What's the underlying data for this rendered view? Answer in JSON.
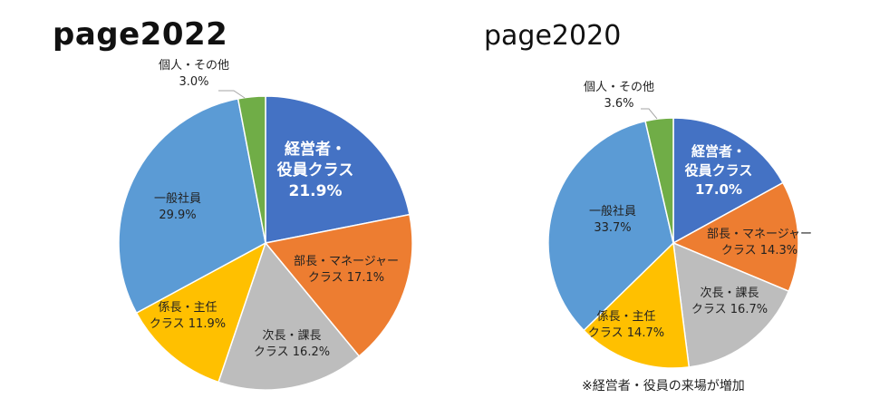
{
  "colors": {
    "executive": "#4472C4",
    "manager": "#ED7D31",
    "section_chief": "#BDBDBD",
    "supervisor": "#FFC000",
    "staff": "#5B9BD5",
    "other": "#70AD47"
  },
  "note": "※経営者・役員の来場が増加",
  "chart_data": [
    {
      "type": "pie",
      "title": "page2022",
      "slices": [
        {
          "key": "executive",
          "label_lines": [
            "経営者・",
            "役員クラス"
          ],
          "value_text": "21.9%",
          "value": 21.9
        },
        {
          "key": "manager",
          "label_lines": [
            "部長・マネージャー"
          ],
          "value_text": "クラス 17.1%",
          "value": 17.1
        },
        {
          "key": "section_chief",
          "label_lines": [
            "次長・課長"
          ],
          "value_text": "クラス 16.2%",
          "value": 16.2
        },
        {
          "key": "supervisor",
          "label_lines": [
            "係長・主任"
          ],
          "value_text": "クラス 11.9%",
          "value": 11.9
        },
        {
          "key": "staff",
          "label_lines": [
            "一般社員"
          ],
          "value_text": "29.9%",
          "value": 29.9
        },
        {
          "key": "other",
          "label_lines": [
            "個人・その他"
          ],
          "value_text": "3.0%",
          "value": 3.0
        }
      ]
    },
    {
      "type": "pie",
      "title": "page2020",
      "slices": [
        {
          "key": "executive",
          "label_lines": [
            "経営者・",
            "役員クラス"
          ],
          "value_text": "17.0%",
          "value": 17.0
        },
        {
          "key": "manager",
          "label_lines": [
            "部長・マネージャー"
          ],
          "value_text": "クラス 14.3%",
          "value": 14.3
        },
        {
          "key": "section_chief",
          "label_lines": [
            "次長・課長"
          ],
          "value_text": "クラス 16.7%",
          "value": 16.7
        },
        {
          "key": "supervisor",
          "label_lines": [
            "係長・主任"
          ],
          "value_text": "クラス 14.7%",
          "value": 14.7
        },
        {
          "key": "staff",
          "label_lines": [
            "一般社員"
          ],
          "value_text": "33.7%",
          "value": 33.7
        },
        {
          "key": "other",
          "label_lines": [
            "個人・その他"
          ],
          "value_text": "3.6%",
          "value": 3.6
        }
      ]
    }
  ]
}
